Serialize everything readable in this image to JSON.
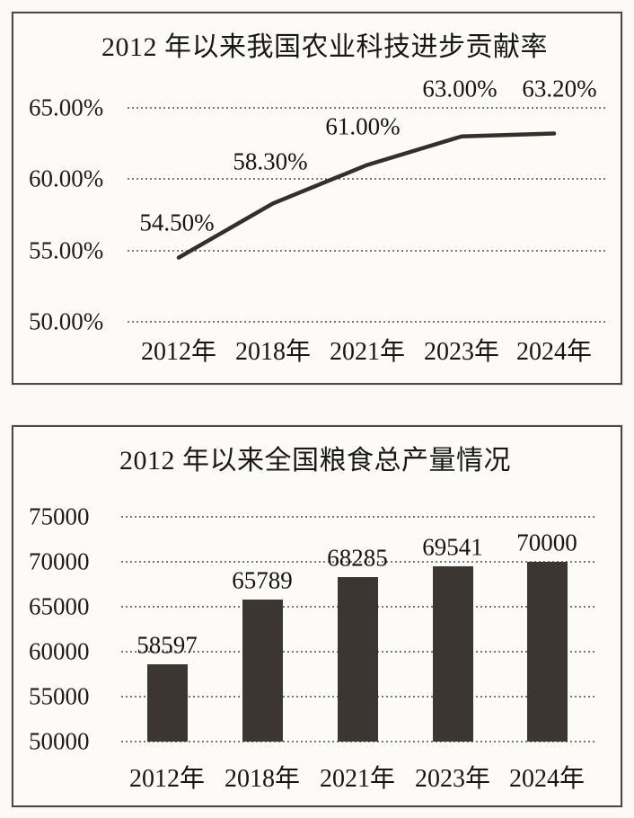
{
  "page": {
    "background": "#fbfaf7",
    "border_color": "#4a4a48",
    "text_color": "#1b1b1b"
  },
  "chart_data": [
    {
      "type": "line",
      "title": "2012 年以来我国农业科技进步贡献率",
      "categories": [
        "2012年",
        "2018年",
        "2021年",
        "2023年",
        "2024年"
      ],
      "values": [
        54.5,
        58.3,
        61.0,
        63.0,
        63.2
      ],
      "point_labels": [
        "54.50%",
        "58.30%",
        "61.00%",
        "63.00%",
        "63.20%"
      ],
      "y_tick_labels": [
        "65.00%",
        "60.00%",
        "55.00%",
        "50.00%"
      ],
      "y_tick_values": [
        65,
        60,
        55,
        50
      ],
      "ylim": [
        50,
        65
      ],
      "xlabel": "",
      "ylabel": "",
      "grid": true,
      "legend": false,
      "line_color": "#33302c"
    },
    {
      "type": "bar",
      "title": "2012 年以来全国粮食总产量情况",
      "categories": [
        "2012年",
        "2018年",
        "2021年",
        "2023年",
        "2024年"
      ],
      "values": [
        58597,
        65789,
        68285,
        69541,
        70000
      ],
      "point_labels": [
        "58597",
        "65789",
        "68285",
        "69541",
        "70000"
      ],
      "y_tick_labels": [
        "75000",
        "70000",
        "65000",
        "60000",
        "55000",
        "50000"
      ],
      "y_tick_values": [
        75000,
        70000,
        65000,
        60000,
        55000,
        50000
      ],
      "ylim": [
        50000,
        75000
      ],
      "xlabel": "",
      "ylabel": "",
      "grid": true,
      "legend": false,
      "bar_color": "#3b3632"
    }
  ]
}
